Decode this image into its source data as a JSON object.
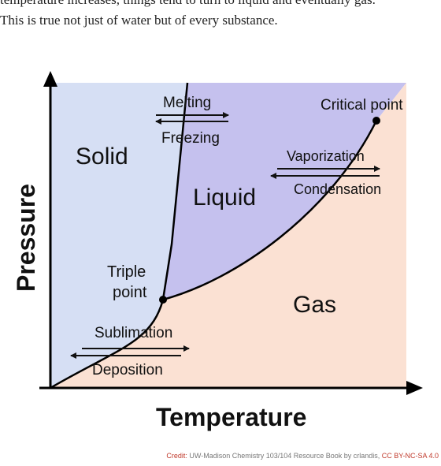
{
  "intro": {
    "line1": "temperature increases, things tend to turn to liquid and eventually gas.",
    "line2": "This is true not just of water but of every substance."
  },
  "diagram": {
    "axes": {
      "x_label": "Temperature",
      "y_label": "Pressure"
    },
    "regions": {
      "solid": "Solid",
      "liquid": "Liquid",
      "gas": "Gas"
    },
    "points": {
      "triple_line1": "Triple",
      "triple_line2": "point",
      "critical": "Critical point"
    },
    "transitions": {
      "melting": "Melting",
      "freezing": "Freezing",
      "vaporization": "Vaporization",
      "condensation": "Condensation",
      "sublimation": "Sublimation",
      "deposition": "Deposition"
    },
    "colors": {
      "solid": "#d6dff4",
      "liquid": "#c5c1ee",
      "gas": "#fbe1d3",
      "line": "#000000"
    }
  },
  "credit": {
    "prefix": "Credit:",
    "text": " UW-Madison Chemistry 103/104 Resource Book by crlandis, ",
    "license": "CC BY-NC-SA 4.0"
  }
}
